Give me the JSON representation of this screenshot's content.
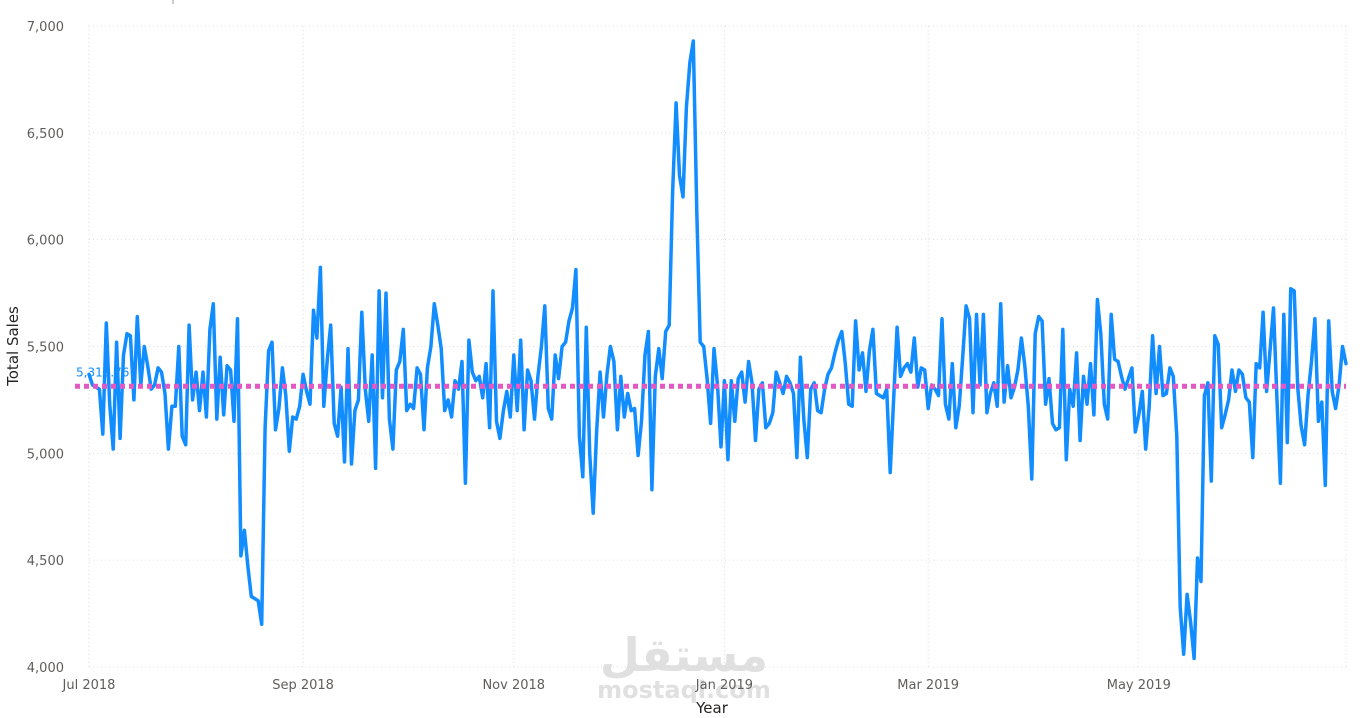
{
  "watermark": {
    "arabic": "مستقل",
    "latin": "mostaql.com"
  },
  "average_line": {
    "label": "5,313.76",
    "value": 5313.76,
    "color": "#e358c2"
  },
  "colors": {
    "series": "#118dff",
    "grid": "#dcdcdc",
    "avg": "#e358c2"
  },
  "chart_data": {
    "type": "line",
    "title": "",
    "xlabel": "Year",
    "ylabel": "Total Sales",
    "ylim": [
      4000,
      7000
    ],
    "yticks": [
      {
        "value": 4000,
        "label": "4,000"
      },
      {
        "value": 4500,
        "label": "4,500"
      },
      {
        "value": 5000,
        "label": "5,000"
      },
      {
        "value": 5500,
        "label": "5,500"
      },
      {
        "value": 6000,
        "label": "6,000"
      },
      {
        "value": 6500,
        "label": "6,500"
      },
      {
        "value": 7000,
        "label": "7,000"
      }
    ],
    "xlim": [
      "2018-07-01",
      "2019-06-30"
    ],
    "xticks": [
      {
        "date": "2018-07-01",
        "label": "Jul 2018"
      },
      {
        "date": "2018-09-01",
        "label": "Sep 2018"
      },
      {
        "date": "2018-11-01",
        "label": "Nov 2018"
      },
      {
        "date": "2019-01-01",
        "label": "Jan 2019"
      },
      {
        "date": "2019-03-01",
        "label": "Mar 2019"
      },
      {
        "date": "2019-05-01",
        "label": "May 2019"
      }
    ],
    "grid": true,
    "series": [
      {
        "color": "#118dff",
        "start_date": "2018-07-01",
        "interval": "day",
        "values": [
          5370,
          5320,
          5310,
          5300,
          5090,
          5610,
          5230,
          5020,
          5520,
          5070,
          5460,
          5560,
          5550,
          5250,
          5640,
          5320,
          5500,
          5410,
          5300,
          5320,
          5400,
          5380,
          5280,
          5020,
          5220,
          5220,
          5500,
          5080,
          5040,
          5600,
          5250,
          5380,
          5200,
          5380,
          5170,
          5580,
          5700,
          5160,
          5450,
          5180,
          5410,
          5390,
          5150,
          5630,
          4520,
          4640,
          4470,
          4330,
          4320,
          4310,
          4200,
          5120,
          5480,
          5520,
          5110,
          5210,
          5400,
          5270,
          5010,
          5170,
          5160,
          5220,
          5370,
          5290,
          5230,
          5670,
          5540,
          5870,
          5220,
          5440,
          5600,
          5140,
          5080,
          5310,
          4960,
          5490,
          4950,
          5200,
          5250,
          5660,
          5300,
          5150,
          5460,
          4930,
          5760,
          5260,
          5750,
          5160,
          5020,
          5390,
          5430,
          5580,
          5200,
          5230,
          5210,
          5400,
          5370,
          5110,
          5400,
          5500,
          5700,
          5600,
          5490,
          5200,
          5250,
          5170,
          5340,
          5300,
          5430,
          4860,
          5530,
          5380,
          5340,
          5360,
          5260,
          5420,
          5120,
          5760,
          5150,
          5070,
          5200,
          5290,
          5170,
          5460,
          5200,
          5530,
          5110,
          5390,
          5340,
          5160,
          5360,
          5500,
          5690,
          5210,
          5160,
          5460,
          5350,
          5500,
          5520,
          5620,
          5680,
          5860,
          5080,
          4890,
          5590,
          5000,
          4720,
          5100,
          5380,
          5170,
          5370,
          5500,
          5430,
          5110,
          5360,
          5170,
          5280,
          5200,
          5210,
          4990,
          5150,
          5460,
          5570,
          4830,
          5360,
          5490,
          5350,
          5570,
          5600,
          6220,
          6640,
          6300,
          6200,
          6620,
          6830,
          6930,
          6130,
          5520,
          5500,
          5350,
          5140,
          5490,
          5320,
          5030,
          5340,
          4970,
          5340,
          5150,
          5350,
          5380,
          5240,
          5430,
          5330,
          5060,
          5300,
          5330,
          5120,
          5140,
          5190,
          5380,
          5330,
          5280,
          5360,
          5330,
          5280,
          4980,
          5450,
          5160,
          4980,
          5300,
          5330,
          5200,
          5190,
          5300,
          5370,
          5400,
          5470,
          5530,
          5570,
          5420,
          5230,
          5220,
          5620,
          5390,
          5470,
          5290,
          5480,
          5580,
          5280,
          5270,
          5260,
          5300,
          4910,
          5250,
          5590,
          5360,
          5400,
          5420,
          5380,
          5540,
          5310,
          5400,
          5390,
          5210,
          5320,
          5300,
          5270,
          5630,
          5230,
          5160,
          5420,
          5120,
          5220,
          5450,
          5690,
          5630,
          5190,
          5650,
          5320,
          5650,
          5190,
          5280,
          5330,
          5220,
          5700,
          5240,
          5410,
          5260,
          5310,
          5390,
          5540,
          5410,
          5220,
          4880,
          5560,
          5640,
          5620,
          5230,
          5350,
          5140,
          5110,
          5120,
          5580,
          4970,
          5300,
          5220,
          5470,
          5060,
          5360,
          5230,
          5420,
          5180,
          5720,
          5560,
          5230,
          5160,
          5650,
          5440,
          5430,
          5360,
          5300,
          5350,
          5400,
          5100,
          5180,
          5290,
          5020,
          5220,
          5550,
          5280,
          5500,
          5270,
          5280,
          5400,
          5360,
          5080,
          4280,
          4060,
          4340,
          4210,
          4040,
          4510,
          4400,
          5270,
          5330,
          4870,
          5550,
          5510,
          5120,
          5180,
          5250,
          5390,
          5290,
          5390,
          5370,
          5260,
          5240,
          4980,
          5420,
          5400,
          5660,
          5290,
          5480,
          5680,
          5260,
          4860,
          5650,
          5050,
          5770,
          5760,
          5310,
          5130,
          5040,
          5270,
          5430,
          5630,
          5150,
          5240,
          4850,
          5620,
          5290,
          5210,
          5320,
          5500,
          5420
        ]
      }
    ]
  }
}
